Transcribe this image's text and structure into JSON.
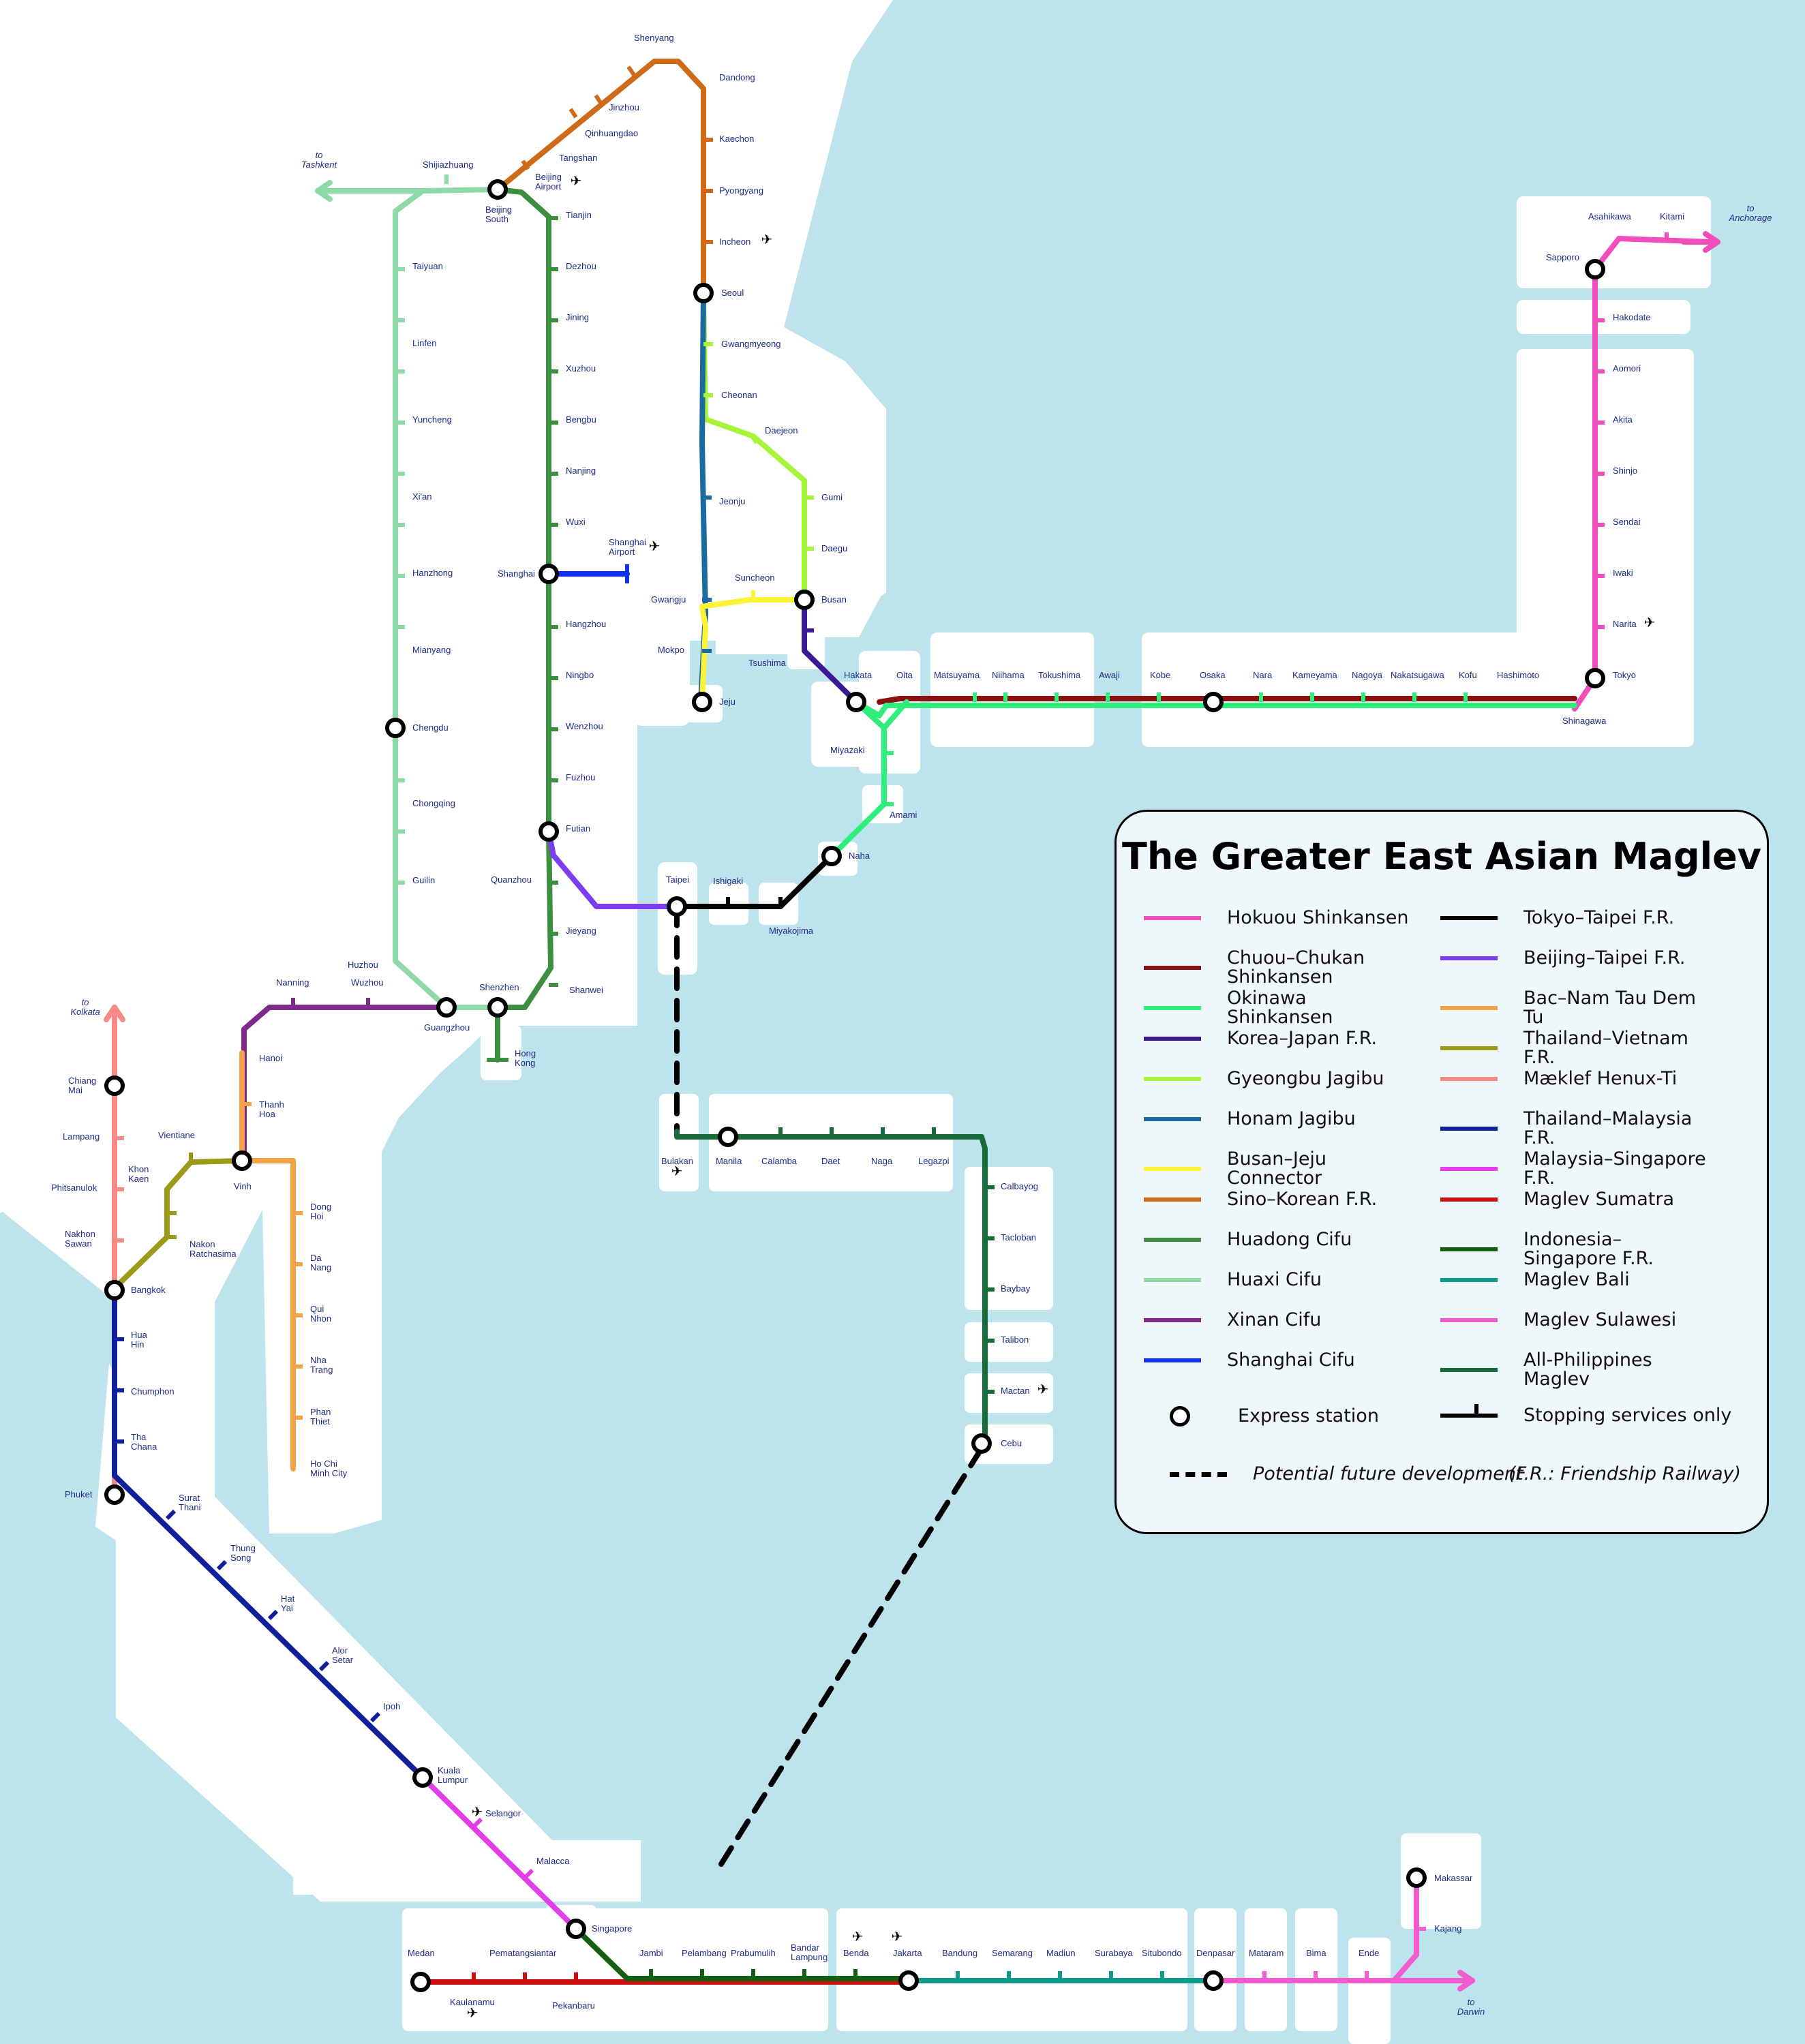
{
  "title": "The Greater East Asian Maglev",
  "legend": {
    "lines": [
      {
        "name": "Hokuou Shinkansen",
        "color": "#f24dbd"
      },
      {
        "name": "Chuou–Chukan Shinkansen",
        "color": "#8b1111"
      },
      {
        "name": "Okinawa Shinkansen",
        "color": "#2fef7c"
      },
      {
        "name": "Korea–Japan F.R.",
        "color": "#3a1896"
      },
      {
        "name": "Gyeongbu Jagibu",
        "color": "#a6f53a"
      },
      {
        "name": "Honam Jagibu",
        "color": "#1d6b9e"
      },
      {
        "name": "Busan–Jeju Connector",
        "color": "#fbf333"
      },
      {
        "name": "Sino–Korean F.R.",
        "color": "#cf6a18"
      },
      {
        "name": "Huadong Cifu",
        "color": "#3b8f3e"
      },
      {
        "name": "Huaxi Cifu",
        "color": "#8fd9a8"
      },
      {
        "name": "Xinan Cifu",
        "color": "#7e2a8b"
      },
      {
        "name": "Shanghai Cifu",
        "color": "#1131f0"
      },
      {
        "name": "Tokyo–Taipei F.R.",
        "color": "#000000"
      },
      {
        "name": "Beijing–Taipei F.R.",
        "color": "#7a3df2"
      },
      {
        "name": "Bac–Nam Tau Dem Tu",
        "color": "#f5a347"
      },
      {
        "name": "Thailand–Vietnam F.R.",
        "color": "#9b9a19"
      },
      {
        "name": "Mæklef Henux-Ti",
        "color": "#f58a86"
      },
      {
        "name": "Thailand–Malaysia F.R.",
        "color": "#10209a"
      },
      {
        "name": "Malaysia–Singapore F.R.",
        "color": "#e23de8"
      },
      {
        "name": "Maglev Sumatra",
        "color": "#cc0e0e"
      },
      {
        "name": "Indonesia–Singapore F.R.",
        "color": "#145f14"
      },
      {
        "name": "Maglev Bali",
        "color": "#129b8c"
      },
      {
        "name": "Maglev Sulawesi",
        "color": "#f25ccf"
      },
      {
        "name": "All-Philippines Maglev",
        "color": "#176b38"
      }
    ],
    "express": "Express station",
    "stopping": "Stopping services only",
    "future": "Potential future development",
    "fr_note": "(F.R.: Friendship Railway)"
  },
  "stations": [
    {
      "id": "shenyang",
      "label": "Shenyang"
    },
    {
      "id": "dandong",
      "label": "Dandong"
    },
    {
      "id": "jinzhou",
      "label": "Jinzhou"
    },
    {
      "id": "qinhuangdao",
      "label": "Qinhuangdao"
    },
    {
      "id": "tangshan",
      "label": "Tangshan"
    },
    {
      "id": "kaechon",
      "label": "Kaechon"
    },
    {
      "id": "pyongyang",
      "label": "Pyongyang"
    },
    {
      "id": "incheon",
      "label": "Incheon"
    },
    {
      "id": "seoul",
      "label": "Seoul"
    },
    {
      "id": "gwangmyeong",
      "label": "Gwangmyeong"
    },
    {
      "id": "cheonan",
      "label": "Cheonan"
    },
    {
      "id": "daejeon",
      "label": "Daejeon"
    },
    {
      "id": "gumi",
      "label": "Gumi"
    },
    {
      "id": "daegu",
      "label": "Daegu"
    },
    {
      "id": "busan",
      "label": "Busan"
    },
    {
      "id": "jeonju",
      "label": "Jeonju"
    },
    {
      "id": "suncheon",
      "label": "Suncheon"
    },
    {
      "id": "gwangju",
      "label": "Gwangju"
    },
    {
      "id": "mokpo",
      "label": "Mokpo"
    },
    {
      "id": "jeju",
      "label": "Jeju"
    },
    {
      "id": "tsushima",
      "label": "Tsushima"
    },
    {
      "id": "shijiazhuang",
      "label": "Shijiazhuang"
    },
    {
      "id": "beijingsouth",
      "label": "Beijing South"
    },
    {
      "id": "beijingairport",
      "label": "Beijing Airport"
    },
    {
      "id": "tianjin",
      "label": "Tianjin"
    },
    {
      "id": "dezhou",
      "label": "Dezhou"
    },
    {
      "id": "jining",
      "label": "Jining"
    },
    {
      "id": "xuzhou",
      "label": "Xuzhou"
    },
    {
      "id": "bengbu",
      "label": "Bengbu"
    },
    {
      "id": "nanjing",
      "label": "Nanjing"
    },
    {
      "id": "wuxi",
      "label": "Wuxi"
    },
    {
      "id": "shanghai",
      "label": "Shanghai"
    },
    {
      "id": "shanghaiairport",
      "label": "Shanghai Airport"
    },
    {
      "id": "hangzhou",
      "label": "Hangzhou"
    },
    {
      "id": "ningbo",
      "label": "Ningbo"
    },
    {
      "id": "wenzhou",
      "label": "Wenzhou"
    },
    {
      "id": "fuzhou",
      "label": "Fuzhou"
    },
    {
      "id": "futian",
      "label": "Futian"
    },
    {
      "id": "quanzhou",
      "label": "Quanzhou"
    },
    {
      "id": "jieyang",
      "label": "Jieyang"
    },
    {
      "id": "shanwei",
      "label": "Shanwei"
    },
    {
      "id": "shenzhen",
      "label": "Shenzhen"
    },
    {
      "id": "hongkong",
      "label": "Hong Kong"
    },
    {
      "id": "taiyuan",
      "label": "Taiyuan"
    },
    {
      "id": "linfen",
      "label": "Linfen"
    },
    {
      "id": "yuncheng",
      "label": "Yuncheng"
    },
    {
      "id": "xian",
      "label": "Xi'an"
    },
    {
      "id": "hanzhong",
      "label": "Hanzhong"
    },
    {
      "id": "mianyang",
      "label": "Mianyang"
    },
    {
      "id": "chengdu",
      "label": "Chengdu"
    },
    {
      "id": "chongqing",
      "label": "Chongqing"
    },
    {
      "id": "guilin",
      "label": "Guilin"
    },
    {
      "id": "huzhou",
      "label": "Huzhou"
    },
    {
      "id": "wuzhou",
      "label": "Wuzhou"
    },
    {
      "id": "guangzhou",
      "label": "Guangzhou"
    },
    {
      "id": "nanning",
      "label": "Nanning"
    },
    {
      "id": "hanoi",
      "label": "Hanoi"
    },
    {
      "id": "thanhhoa",
      "label": "Thanh Hoa"
    },
    {
      "id": "vinh",
      "label": "Vinh"
    },
    {
      "id": "vientiane",
      "label": "Vientiane"
    },
    {
      "id": "khonkaen",
      "label": "Khon Kaen"
    },
    {
      "id": "nakhonratchasima",
      "label": "Nakon Ratchasima"
    },
    {
      "id": "donghoi",
      "label": "Dong Hoi"
    },
    {
      "id": "danang",
      "label": "Da Nang"
    },
    {
      "id": "quinhon",
      "label": "Qui Nhon"
    },
    {
      "id": "nhatrang",
      "label": "Nha Trang"
    },
    {
      "id": "phanthiet",
      "label": "Phan Thiet"
    },
    {
      "id": "hochiminh",
      "label": "Ho Chi Minh City"
    },
    {
      "id": "chiangmai",
      "label": "Chiang Mai"
    },
    {
      "id": "lampang",
      "label": "Lampang"
    },
    {
      "id": "phitsanulok",
      "label": "Phitsanulok"
    },
    {
      "id": "nakhonsawan",
      "label": "Nakhon Sawan"
    },
    {
      "id": "bangkok",
      "label": "Bangkok"
    },
    {
      "id": "huahin",
      "label": "Hua Hin"
    },
    {
      "id": "chumphon",
      "label": "Chumphon"
    },
    {
      "id": "thachana",
      "label": "Tha Chana"
    },
    {
      "id": "phuket",
      "label": "Phuket"
    },
    {
      "id": "suratthani",
      "label": "Surat Thani"
    },
    {
      "id": "thungsong",
      "label": "Thung Song"
    },
    {
      "id": "hatyai",
      "label": "Hat Yai"
    },
    {
      "id": "alorsetar",
      "label": "Alor Setar"
    },
    {
      "id": "ipoh",
      "label": "Ipoh"
    },
    {
      "id": "kualalumpur",
      "label": "Kuala Lumpur"
    },
    {
      "id": "selangor",
      "label": "Selangor"
    },
    {
      "id": "malacca",
      "label": "Malacca"
    },
    {
      "id": "singapore",
      "label": "Singapore"
    },
    {
      "id": "medan",
      "label": "Medan"
    },
    {
      "id": "kaulanamu",
      "label": "Kaulanamu"
    },
    {
      "id": "pematangsiantar",
      "label": "Pematangsiantar"
    },
    {
      "id": "pekanbaru",
      "label": "Pekanbaru"
    },
    {
      "id": "jambi",
      "label": "Jambi"
    },
    {
      "id": "pelambang",
      "label": "Pelambang"
    },
    {
      "id": "prabumulih",
      "label": "Prabumulih"
    },
    {
      "id": "bandarlampung",
      "label": "Bandar Lampung"
    },
    {
      "id": "benda",
      "label": "Benda"
    },
    {
      "id": "jakarta",
      "label": "Jakarta"
    },
    {
      "id": "bandung",
      "label": "Bandung"
    },
    {
      "id": "semarang",
      "label": "Semarang"
    },
    {
      "id": "madiun",
      "label": "Madiun"
    },
    {
      "id": "surabaya",
      "label": "Surabaya"
    },
    {
      "id": "situbondo",
      "label": "Situbondo"
    },
    {
      "id": "denpasar",
      "label": "Denpasar"
    },
    {
      "id": "mataram",
      "label": "Mataram"
    },
    {
      "id": "bima",
      "label": "Bima"
    },
    {
      "id": "ende",
      "label": "Ende"
    },
    {
      "id": "makassar",
      "label": "Makassar"
    },
    {
      "id": "kajang",
      "label": "Kajang"
    },
    {
      "id": "taipei",
      "label": "Taipei"
    },
    {
      "id": "ishigaki",
      "label": "Ishigaki"
    },
    {
      "id": "miyakojima",
      "label": "Miyakojima"
    },
    {
      "id": "naha",
      "label": "Naha"
    },
    {
      "id": "amami",
      "label": "Amami"
    },
    {
      "id": "miyazaki",
      "label": "Miyazaki"
    },
    {
      "id": "hakata",
      "label": "Hakata"
    },
    {
      "id": "oita",
      "label": "Oita"
    },
    {
      "id": "matsuyama",
      "label": "Matsuyama"
    },
    {
      "id": "niihama",
      "label": "Niihama"
    },
    {
      "id": "tokushima",
      "label": "Tokushima"
    },
    {
      "id": "awaji",
      "label": "Awaji"
    },
    {
      "id": "kobe",
      "label": "Kobe"
    },
    {
      "id": "osaka",
      "label": "Osaka"
    },
    {
      "id": "nara",
      "label": "Nara"
    },
    {
      "id": "kameyama",
      "label": "Kameyama"
    },
    {
      "id": "nagoya",
      "label": "Nagoya"
    },
    {
      "id": "nakatsugawa",
      "label": "Nakatsugawa"
    },
    {
      "id": "kofu",
      "label": "Kofu"
    },
    {
      "id": "hashimoto",
      "label": "Hashimoto"
    },
    {
      "id": "tokyo",
      "label": "Tokyo"
    },
    {
      "id": "shinagawa",
      "label": "Shinagawa"
    },
    {
      "id": "narita",
      "label": "Narita"
    },
    {
      "id": "iwaki",
      "label": "Iwaki"
    },
    {
      "id": "sendai",
      "label": "Sendai"
    },
    {
      "id": "shinjo",
      "label": "Shinjo"
    },
    {
      "id": "akita",
      "label": "Akita"
    },
    {
      "id": "aomori",
      "label": "Aomori"
    },
    {
      "id": "hakodate",
      "label": "Hakodate"
    },
    {
      "id": "sapporo",
      "label": "Sapporo"
    },
    {
      "id": "asahikawa",
      "label": "Asahikawa"
    },
    {
      "id": "kitami",
      "label": "Kitami"
    },
    {
      "id": "bulakan",
      "label": "Bulakan"
    },
    {
      "id": "manila",
      "label": "Manila"
    },
    {
      "id": "calamba",
      "label": "Calamba"
    },
    {
      "id": "daet",
      "label": "Daet"
    },
    {
      "id": "naga",
      "label": "Naga"
    },
    {
      "id": "legazpi",
      "label": "Legazpi"
    },
    {
      "id": "calbayog",
      "label": "Calbayog"
    },
    {
      "id": "tacloban",
      "label": "Tacloban"
    },
    {
      "id": "baybay",
      "label": "Baybay"
    },
    {
      "id": "talibon",
      "label": "Talibon"
    },
    {
      "id": "mactan",
      "label": "Mactan"
    },
    {
      "id": "cebu",
      "label": "Cebu"
    }
  ],
  "destinations": [
    {
      "id": "tashkent",
      "label": "to Tashkent"
    },
    {
      "id": "kolkata",
      "label": "to Kolkata"
    },
    {
      "id": "anchorage",
      "label": "to Anchorage"
    },
    {
      "id": "darwin",
      "label": "to Darwin"
    }
  ]
}
